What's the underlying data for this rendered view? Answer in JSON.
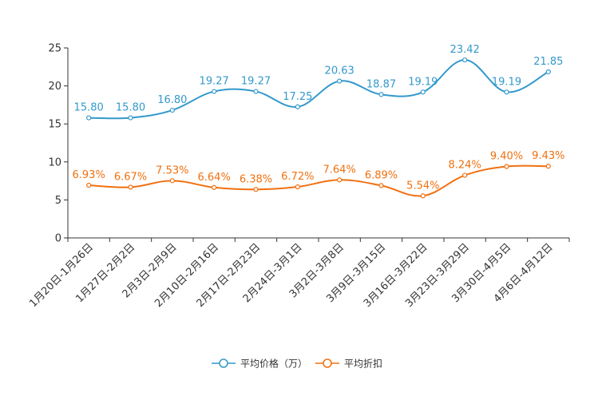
{
  "chart_data": {
    "type": "line",
    "title": "",
    "xlabel": "",
    "ylabel": "",
    "ylim": [
      0,
      25
    ],
    "yticks": [
      0,
      5,
      10,
      15,
      20,
      25
    ],
    "grid": false,
    "legend_position": "bottom-center",
    "categories": [
      "1月20日-1月26日",
      "1月27日-2月2日",
      "2月3日-2月9日",
      "2月10日-2月16日",
      "2月17日-2月23日",
      "2月24日-3月1日",
      "3月2日-3月8日",
      "3月9日-3月15日",
      "3月16日-3月22日",
      "3月23日-3月29日",
      "3月30日-4月5日",
      "4月6日-4月12日"
    ],
    "series": [
      {
        "name": "平均价格（万）",
        "color": "#3399cc",
        "values": [
          15.8,
          15.8,
          16.8,
          19.27,
          19.27,
          17.25,
          20.63,
          18.87,
          19.19,
          23.42,
          19.19,
          21.85
        ],
        "labels": [
          "15.80",
          "15.80",
          "16.80",
          "19.27",
          "19.27",
          "17.25",
          "20.63",
          "18.87",
          "19.19",
          "23.42",
          "19.19",
          "21.85"
        ]
      },
      {
        "name": "平均折扣",
        "color": "#f07010",
        "values": [
          6.93,
          6.67,
          7.53,
          6.64,
          6.38,
          6.72,
          7.64,
          6.89,
          5.54,
          8.24,
          9.4,
          9.43
        ],
        "labels": [
          "6.93%",
          "6.67%",
          "7.53%",
          "6.64%",
          "6.38%",
          "6.72%",
          "7.64%",
          "6.89%",
          "5.54%",
          "8.24%",
          "9.40%",
          "9.43%"
        ]
      }
    ]
  }
}
